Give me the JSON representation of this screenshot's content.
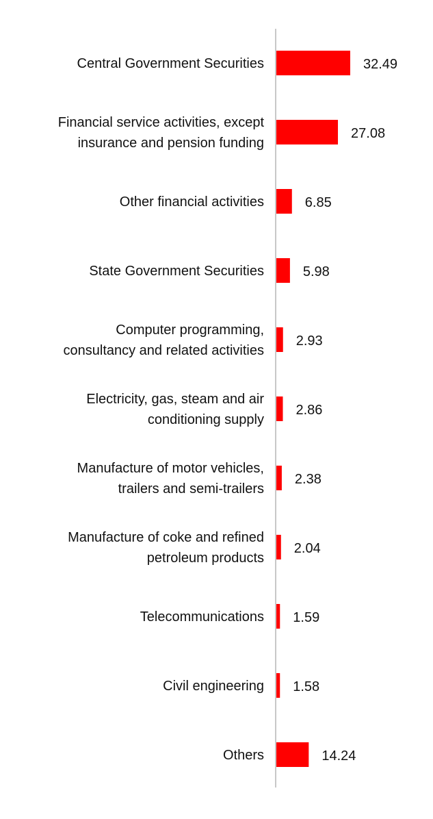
{
  "chart_data": {
    "type": "bar",
    "orientation": "horizontal",
    "categories": [
      "Central Government Securities",
      "Financial service activities, except insurance and pension funding",
      "Other financial activities",
      "State Government Securities",
      "Computer programming, consultancy and related activities",
      "Electricity, gas, steam and air conditioning supply",
      "Manufacture of motor vehicles, trailers and semi-trailers",
      "Manufacture of coke and refined petroleum products",
      "Telecommunications",
      "Civil engineering",
      "Others"
    ],
    "category_lines": [
      [
        "Central Government Securities"
      ],
      [
        "Financial service activities, except",
        "insurance and pension funding"
      ],
      [
        "Other financial activities"
      ],
      [
        "State Government Securities"
      ],
      [
        "Computer programming,",
        "consultancy and related activities"
      ],
      [
        "Electricity, gas, steam and air",
        "conditioning supply"
      ],
      [
        "Manufacture of motor vehicles,",
        "trailers and semi-trailers"
      ],
      [
        "Manufacture of coke and refined",
        "petroleum products"
      ],
      [
        "Telecommunications"
      ],
      [
        "Civil engineering"
      ],
      [
        "Others"
      ]
    ],
    "values": [
      32.49,
      27.08,
      6.85,
      5.98,
      2.93,
      2.86,
      2.38,
      2.04,
      1.59,
      1.58,
      14.24
    ],
    "value_labels": [
      "32.49",
      "27.08",
      "6.85",
      "5.98",
      "2.93",
      "2.86",
      "2.38",
      "2.04",
      "1.59",
      "1.58",
      "14.24"
    ],
    "title": "",
    "xlabel": "",
    "ylabel": "",
    "xlim": [
      0,
      35
    ],
    "grid": false,
    "legend": "none",
    "bar_color": "#ff0000",
    "axis_color": "#c8c8c8",
    "text_color": "#111111"
  }
}
